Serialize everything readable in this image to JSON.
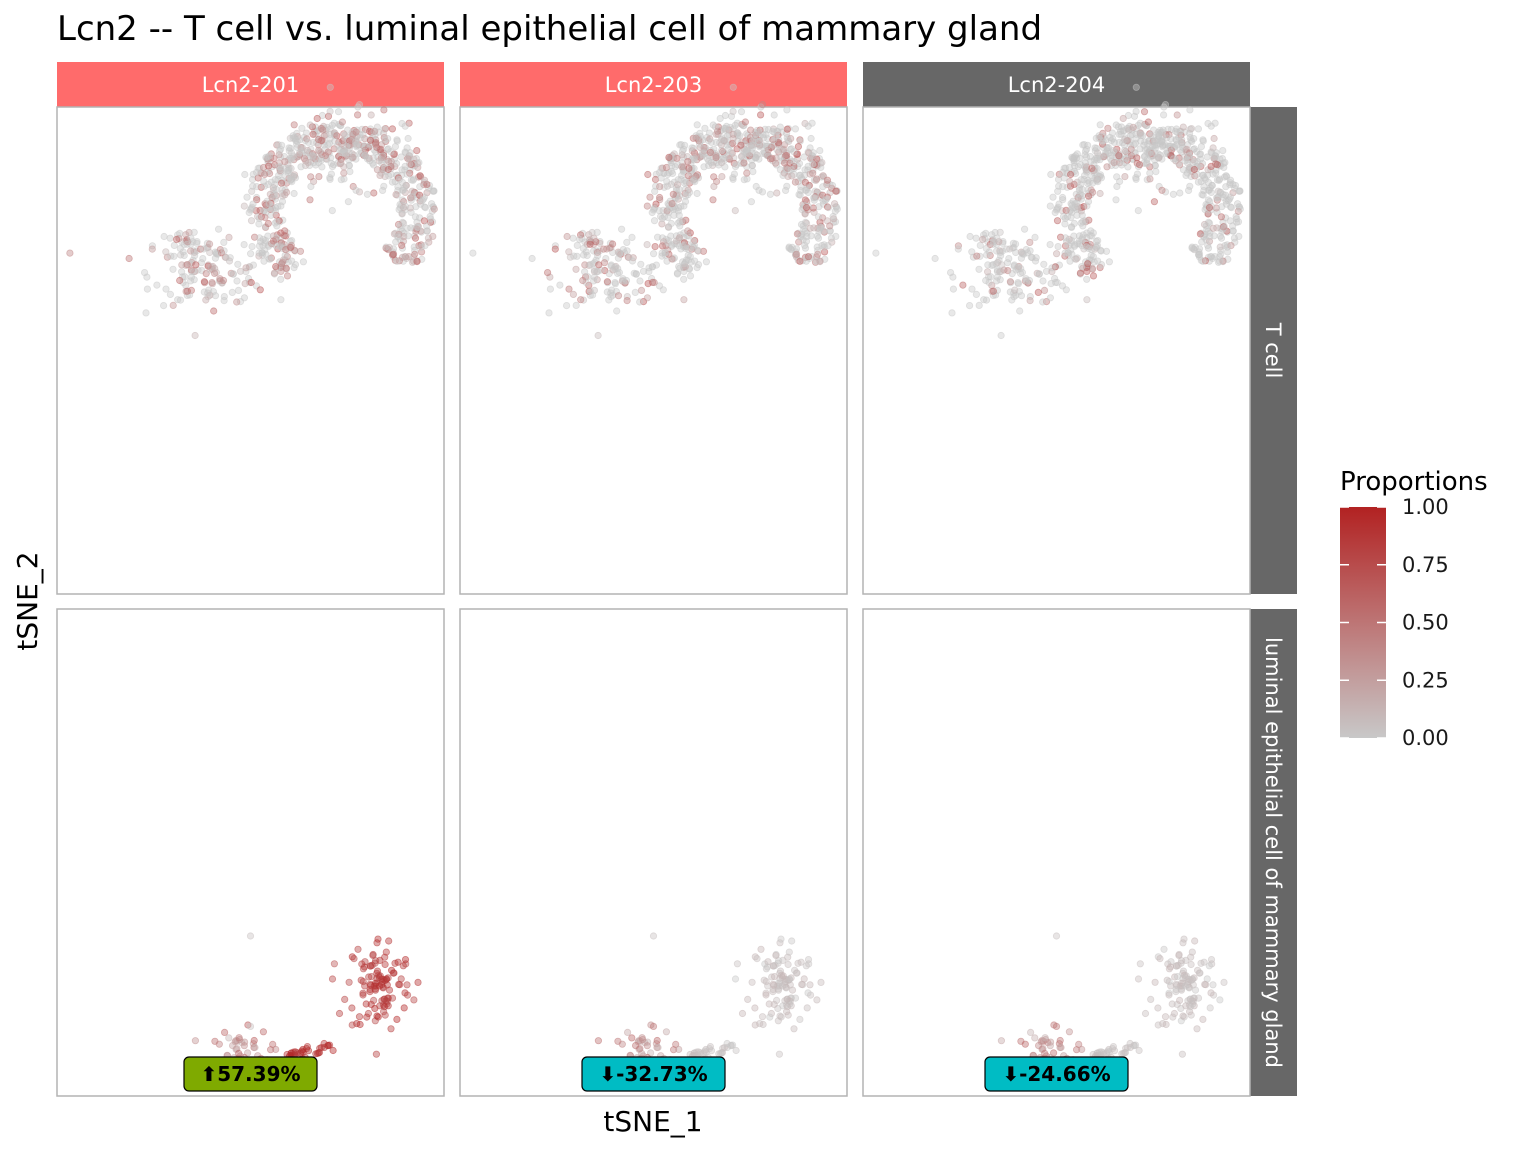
{
  "chart_data": {
    "type": "scatter",
    "title": "Lcn2 -- T cell vs. luminal epithelial cell of mammary gland",
    "xlabel": "tSNE_1",
    "ylabel": "tSNE_2",
    "columns": [
      {
        "label": "Lcn2-201",
        "color": "#FF6B6B"
      },
      {
        "label": "Lcn2-203",
        "color": "#FF6B6B"
      },
      {
        "label": "Lcn2-204",
        "color": "#676767"
      }
    ],
    "rows": [
      {
        "label": "T cell",
        "color": "#676767"
      },
      {
        "label": "luminal epithelial cell of mammary gland",
        "color": "#676767"
      }
    ],
    "legend": {
      "title": "Proportions",
      "position": "right",
      "low_color": "#C8C8C8",
      "high_color": "#B22222",
      "ticks": [
        "1.00",
        "0.75",
        "0.50",
        "0.25",
        "0.00"
      ],
      "tick_values": [
        1.0,
        0.75,
        0.5,
        0.25,
        0.0
      ]
    },
    "badges": [
      {
        "text": "⬆57.39%",
        "value": 57.39,
        "color": "#7FAA00"
      },
      {
        "text": "⬇-32.73%",
        "value": -32.73,
        "color": "#00BCC4"
      },
      {
        "text": "⬇-24.66%",
        "value": -24.66,
        "color": "#00BCC4"
      }
    ],
    "panel_mean_proportion": [
      [
        0.25,
        0.22,
        0.12
      ],
      [
        0.85,
        0.22,
        0.18
      ]
    ],
    "xlim": [
      -30,
      30
    ],
    "ylim": [
      -35,
      35
    ],
    "grid": false
  }
}
